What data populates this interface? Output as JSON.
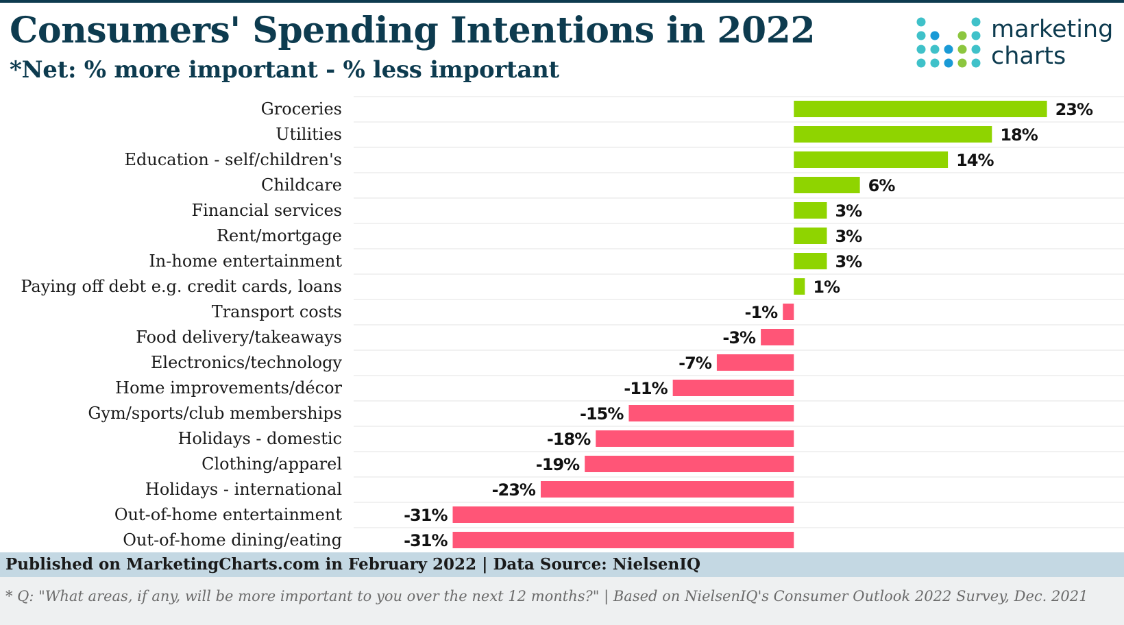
{
  "header": {
    "title": "Consumers' Spending Intentions in 2022",
    "subtitle": "*Net: % more important - % less important"
  },
  "logo": {
    "line1": "marketing",
    "line2": "charts",
    "colors": [
      "#3fc1c9",
      "#8cc63f",
      "#1a9ad6",
      "#0d3b4f"
    ]
  },
  "footer": {
    "published": "Published on MarketingCharts.com in February 2022 | Data Source: NielsenIQ",
    "note": "* Q: \"What areas, if any, will be more important to you over the next 12 months?\" | Based on NielsenIQ's Consumer Outlook 2022 Survey, Dec. 2021"
  },
  "colors": {
    "positive": "#8fd400",
    "negative": "#ff5577",
    "title": "#0d3b4f",
    "grid": "#e3e3e3"
  },
  "chart_data": {
    "type": "bar",
    "orientation": "horizontal",
    "title": "Consumers' Spending Intentions in 2022",
    "subtitle": "*Net: % more important - % less important",
    "categories": [
      "Groceries",
      "Utilities",
      "Education - self/children's",
      "Childcare",
      "Financial services",
      "Rent/mortgage",
      "In-home entertainment",
      "Paying off debt e.g. credit cards, loans",
      "Transport costs",
      "Food delivery/takeaways",
      "Electronics/technology",
      "Home improvements/décor",
      "Gym/sports/club memberships",
      "Holidays - domestic",
      "Clothing/apparel",
      "Holidays - international",
      "Out-of-home entertainment",
      "Out-of-home dining/eating"
    ],
    "values": [
      23,
      18,
      14,
      6,
      3,
      3,
      3,
      1,
      -1,
      -3,
      -7,
      -11,
      -15,
      -18,
      -19,
      -23,
      -31,
      -31
    ],
    "labels": [
      "23%",
      "18%",
      "14%",
      "6%",
      "3%",
      "3%",
      "3%",
      "1%",
      "-1%",
      "-3%",
      "-7%",
      "-11%",
      "-15%",
      "-18%",
      "-19%",
      "-23%",
      "-31%",
      "-31%"
    ],
    "xlim": [
      -40,
      30
    ],
    "grid": true
  }
}
